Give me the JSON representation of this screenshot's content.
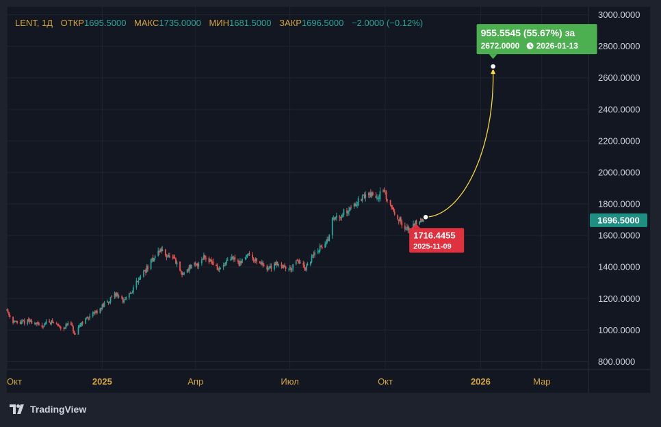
{
  "legend": {
    "symbol": "LENT, 1Д",
    "open_label": "ОТКР",
    "open_value": "1695.5000",
    "high_label": "МАКС",
    "high_value": "1735.0000",
    "low_label": "МИН",
    "low_value": "1681.5000",
    "close_label": "ЗАКР",
    "close_value": "1696.5000",
    "change": "−2.0000 (−0.12%)"
  },
  "price_badge": "1696.5000",
  "forecast": {
    "start_value": "1716.4455",
    "start_date": "2025-11-09",
    "target_change": "955.5545 (55.67%) за",
    "target_value": "2672.0000",
    "target_date": "2026-01-13"
  },
  "brand": {
    "name": "TradingView"
  },
  "colors": {
    "up": "#26a69a",
    "down": "#ef5350",
    "accent_green": "#4caf50",
    "accent_red": "#e0313f",
    "forecast_line": "#f5d742",
    "legend_text": "#d4a53c"
  },
  "chart_data": {
    "type": "candlestick",
    "symbol": "LENT",
    "interval": "1Д",
    "ylim": [
      750,
      3050
    ],
    "yticks": [
      "3000.0000",
      "2800.0000",
      "2600.0000",
      "2400.0000",
      "2200.0000",
      "2000.0000",
      "1800.0000",
      "1600.0000",
      "1400.0000",
      "1200.0000",
      "1000.0000",
      "800.0000"
    ],
    "ytick_values": [
      3000,
      2800,
      2600,
      2400,
      2200,
      2000,
      1800,
      1600,
      1400,
      1200,
      1000,
      800
    ],
    "xticks": [
      {
        "label": "Окт",
        "date": "2024-10-01",
        "bold": false
      },
      {
        "label": "2025",
        "date": "2025-01-01",
        "bold": true
      },
      {
        "label": "Апр",
        "date": "2025-04-01",
        "bold": false
      },
      {
        "label": "Июл",
        "date": "2025-07-01",
        "bold": false
      },
      {
        "label": "Окт",
        "date": "2025-10-01",
        "bold": false
      },
      {
        "label": "2026",
        "date": "2026-01-01",
        "bold": true
      },
      {
        "label": "Мар",
        "date": "2026-03-01",
        "bold": false
      }
    ],
    "xrange": [
      "2024-10-01",
      "2026-04-15"
    ],
    "grid": true,
    "price_path": [
      [
        "2024-10-01",
        1130
      ],
      [
        "2024-10-06",
        1060
      ],
      [
        "2024-10-13",
        1040
      ],
      [
        "2024-10-20",
        1060
      ],
      [
        "2024-10-27",
        1050
      ],
      [
        "2024-11-03",
        1020
      ],
      [
        "2024-11-10",
        1060
      ],
      [
        "2024-11-17",
        1040
      ],
      [
        "2024-11-24",
        1010
      ],
      [
        "2024-12-01",
        1050
      ],
      [
        "2024-12-06",
        960
      ],
      [
        "2024-12-11",
        1040
      ],
      [
        "2024-12-18",
        1080
      ],
      [
        "2024-12-25",
        1110
      ],
      [
        "2025-01-01",
        1150
      ],
      [
        "2025-01-08",
        1190
      ],
      [
        "2025-01-15",
        1230
      ],
      [
        "2025-01-22",
        1180
      ],
      [
        "2025-01-29",
        1240
      ],
      [
        "2025-02-05",
        1330
      ],
      [
        "2025-02-12",
        1380
      ],
      [
        "2025-02-19",
        1450
      ],
      [
        "2025-02-26",
        1510
      ],
      [
        "2025-03-05",
        1470
      ],
      [
        "2025-03-12",
        1440
      ],
      [
        "2025-03-19",
        1350
      ],
      [
        "2025-03-26",
        1400
      ],
      [
        "2025-04-02",
        1410
      ],
      [
        "2025-04-09",
        1470
      ],
      [
        "2025-04-16",
        1440
      ],
      [
        "2025-04-23",
        1380
      ],
      [
        "2025-04-30",
        1420
      ],
      [
        "2025-05-07",
        1460
      ],
      [
        "2025-05-14",
        1420
      ],
      [
        "2025-05-21",
        1490
      ],
      [
        "2025-05-28",
        1450
      ],
      [
        "2025-06-04",
        1420
      ],
      [
        "2025-06-11",
        1390
      ],
      [
        "2025-06-18",
        1430
      ],
      [
        "2025-06-25",
        1400
      ],
      [
        "2025-07-02",
        1390
      ],
      [
        "2025-07-09",
        1440
      ],
      [
        "2025-07-16",
        1380
      ],
      [
        "2025-07-23",
        1470
      ],
      [
        "2025-07-30",
        1520
      ],
      [
        "2025-08-06",
        1560
      ],
      [
        "2025-08-11",
        1700
      ],
      [
        "2025-08-18",
        1730
      ],
      [
        "2025-08-25",
        1760
      ],
      [
        "2025-09-01",
        1800
      ],
      [
        "2025-09-08",
        1830
      ],
      [
        "2025-09-15",
        1870
      ],
      [
        "2025-09-22",
        1840
      ],
      [
        "2025-09-29",
        1880
      ],
      [
        "2025-10-06",
        1790
      ],
      [
        "2025-10-13",
        1720
      ],
      [
        "2025-10-20",
        1630
      ],
      [
        "2025-10-27",
        1660
      ],
      [
        "2025-11-03",
        1700
      ],
      [
        "2025-11-08",
        1696.5
      ]
    ],
    "current_price": 1696.5,
    "forecast": {
      "start": {
        "date": "2025-11-09",
        "value": 1716.4455
      },
      "end": {
        "date": "2026-01-13",
        "value": 2672.0
      },
      "change": 955.5545,
      "change_pct": 55.67
    }
  }
}
